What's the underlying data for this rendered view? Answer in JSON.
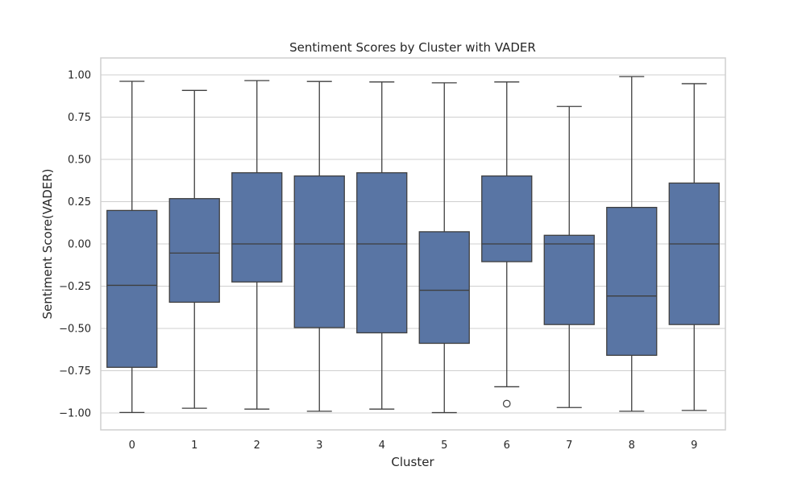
{
  "chart_data": {
    "type": "box",
    "title": "Sentiment Scores by Cluster with VADER",
    "xlabel": "Cluster",
    "ylabel": "Sentiment Score(VADER)",
    "ylim": [
      -1.1,
      1.1
    ],
    "yticks": [
      1.0,
      0.75,
      0.5,
      0.25,
      0.0,
      -0.25,
      -0.5,
      -0.75,
      -1.0
    ],
    "ytick_labels": [
      "1.00",
      "0.75",
      "0.50",
      "0.25",
      "0.00",
      "−0.25",
      "−0.50",
      "−0.75",
      "−1.00"
    ],
    "grid": true,
    "categories": [
      "0",
      "1",
      "2",
      "3",
      "4",
      "5",
      "6",
      "7",
      "8",
      "9"
    ],
    "boxes": [
      {
        "min": -0.997,
        "q1": -0.73,
        "median": -0.245,
        "q3": 0.198,
        "max": 0.962,
        "outliers": []
      },
      {
        "min": -0.972,
        "q1": -0.345,
        "median": -0.054,
        "q3": 0.268,
        "max": 0.908,
        "outliers": []
      },
      {
        "min": -0.977,
        "q1": -0.225,
        "median": 0.0,
        "q3": 0.421,
        "max": 0.966,
        "outliers": []
      },
      {
        "min": -0.99,
        "q1": -0.495,
        "median": 0.0,
        "q3": 0.402,
        "max": 0.961,
        "outliers": []
      },
      {
        "min": -0.977,
        "q1": -0.526,
        "median": 0.0,
        "q3": 0.421,
        "max": 0.958,
        "outliers": []
      },
      {
        "min": -0.998,
        "q1": -0.588,
        "median": -0.274,
        "q3": 0.072,
        "max": 0.953,
        "outliers": []
      },
      {
        "min": -0.845,
        "q1": -0.105,
        "median": 0.0,
        "q3": 0.402,
        "max": 0.958,
        "outliers": [
          -0.945
        ]
      },
      {
        "min": -0.968,
        "q1": -0.477,
        "median": 0.0,
        "q3": 0.051,
        "max": 0.813,
        "outliers": []
      },
      {
        "min": -0.99,
        "q1": -0.659,
        "median": -0.308,
        "q3": 0.216,
        "max": 0.99,
        "outliers": []
      },
      {
        "min": -0.985,
        "q1": -0.477,
        "median": 0.0,
        "q3": 0.36,
        "max": 0.948,
        "outliers": []
      }
    ],
    "box_color": "#5975a4",
    "line_color": "#3f3f3f",
    "grid_color": "#cfcfcf"
  }
}
